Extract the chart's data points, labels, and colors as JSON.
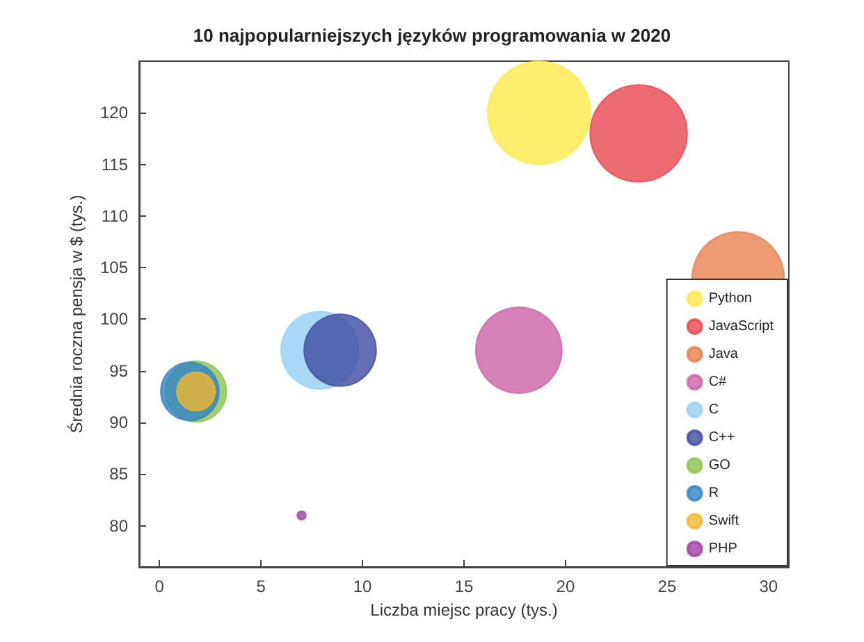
{
  "chart_data": {
    "type": "bubble",
    "title": "10 najpopularniejszych języków programowania w 2020",
    "xlabel": "Liczba miejsc pracy (tys.)",
    "ylabel": "Średnia roczna pensja w $ (tys.)",
    "xlim": [
      -1,
      31
    ],
    "xticks": [
      0,
      5,
      10,
      15,
      20,
      25,
      30
    ],
    "ylim": [
      76,
      125
    ],
    "yticks": [
      80,
      85,
      90,
      95,
      100,
      105,
      110,
      115,
      120
    ],
    "grid": false,
    "legend": "bottom right",
    "marker": "circle",
    "series": [
      {
        "name": "Python",
        "color": "#ffe94a",
        "x": [
          18.7
        ],
        "values": [
          120
        ],
        "sizes": [
          1
        ]
      },
      {
        "name": "JavaScript",
        "color": "#e8464f",
        "x": [
          23.6
        ],
        "values": [
          118
        ],
        "sizes": [
          0.89
        ]
      },
      {
        "name": "Java",
        "color": "#e8804d",
        "x": [
          28.5
        ],
        "values": [
          104
        ],
        "sizes": [
          0.8
        ]
      },
      {
        "name": "C#",
        "color": "#cc62a8",
        "x": [
          17.7
        ],
        "values": [
          97
        ],
        "sizes": [
          0.7
        ]
      },
      {
        "name": "C",
        "color": "#93d0f5",
        "x": [
          7.9
        ],
        "values": [
          97
        ],
        "sizes": [
          0.57
        ]
      },
      {
        "name": "C++",
        "color": "#3d4aa0",
        "x": [
          8.9
        ],
        "values": [
          97
        ],
        "sizes": [
          0.49
        ]
      },
      {
        "name": "GO",
        "color": "#8dc34a",
        "x": [
          1.8
        ],
        "values": [
          93
        ],
        "sizes": [
          0.35
        ]
      },
      {
        "name": "R",
        "color": "#2f82c8",
        "x": [
          1.5
        ],
        "values": [
          93
        ],
        "sizes": [
          0.32
        ]
      },
      {
        "name": "Swift",
        "color": "#f0b830",
        "x": [
          1.8
        ],
        "values": [
          93
        ],
        "sizes": [
          0.14
        ]
      },
      {
        "name": "PHP",
        "color": "#a040a8",
        "x": [
          7
        ],
        "values": [
          81
        ],
        "sizes": [
          0.007
        ]
      }
    ]
  }
}
